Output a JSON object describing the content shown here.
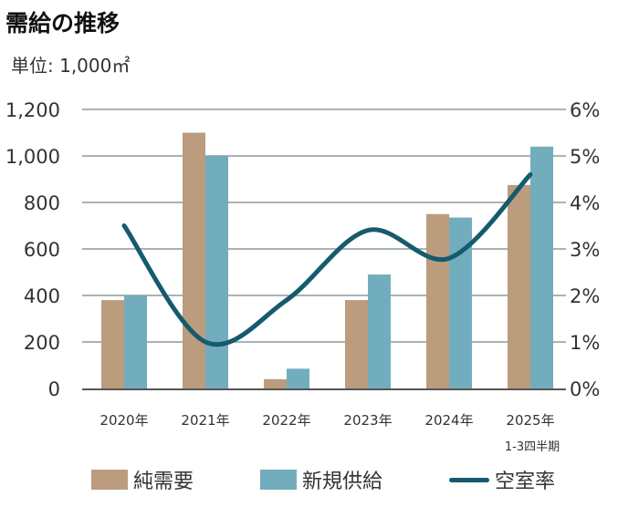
{
  "chart_data": {
    "type": "bar+line",
    "title": "需給の推移",
    "unit_label": "単位: 1,000㎡",
    "categories": [
      "2020年",
      "2021年",
      "2022年",
      "2023年",
      "2024年",
      "2025年"
    ],
    "category_note": "1-3四半期",
    "series": [
      {
        "name": "純需要",
        "type": "bar",
        "axis": "left",
        "color": "#bb9c7c",
        "values": [
          380,
          1100,
          40,
          380,
          750,
          875
        ]
      },
      {
        "name": "新規供給",
        "type": "bar",
        "axis": "left",
        "color": "#72adbd",
        "values": [
          400,
          1000,
          85,
          490,
          735,
          1040
        ]
      },
      {
        "name": "空室率",
        "type": "line",
        "axis": "right",
        "color": "#155a6e",
        "values": [
          3.5,
          1.0,
          1.9,
          3.4,
          2.8,
          4.6
        ]
      }
    ],
    "left_axis": {
      "min": 0,
      "max": 1200,
      "ticks": [
        "0",
        "200",
        "400",
        "600",
        "800",
        "1,000",
        "1,200"
      ]
    },
    "right_axis": {
      "min": 0,
      "max": 6,
      "ticks": [
        "0%",
        "1%",
        "2%",
        "3%",
        "4%",
        "5%",
        "6%"
      ]
    },
    "grid": true,
    "legend_position": "bottom"
  }
}
